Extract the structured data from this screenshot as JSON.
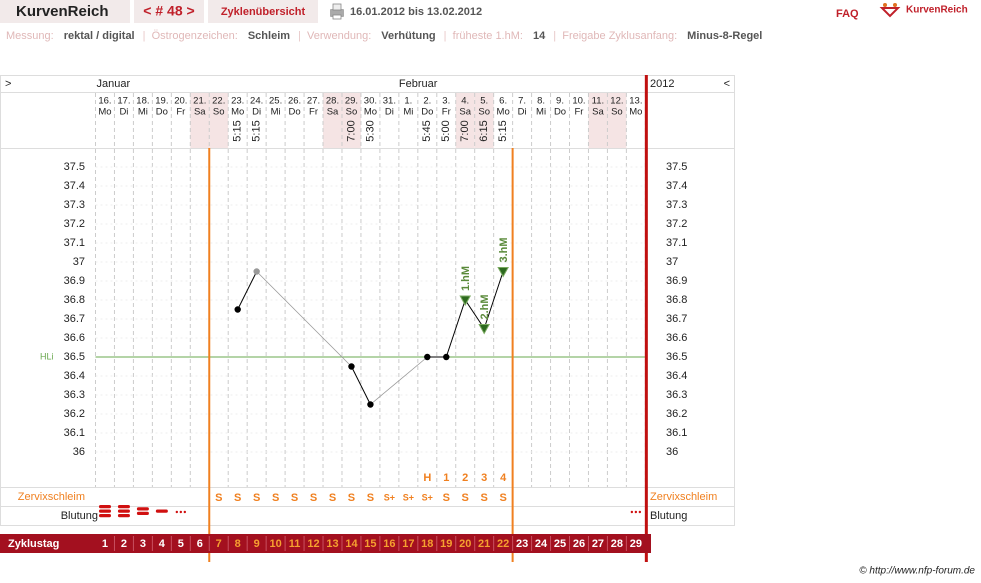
{
  "header": {
    "brand": "KurvenReich",
    "cycle_nav": "< # 48 >",
    "tab": "Zyklenübersicht",
    "date_range": "16.01.2012 bis 13.02.2012",
    "faq": "FAQ",
    "logo": "KurvenReich"
  },
  "info": [
    {
      "label": "Messung:",
      "value": "rektal / digital"
    },
    {
      "label": "Östrogenzeichen:",
      "value": "Schleim"
    },
    {
      "label": "Verwendung:",
      "value": "Verhütung"
    },
    {
      "label": "früheste 1.hM:",
      "value": "14"
    },
    {
      "label": "Freigabe Zyklusanfang:",
      "value": "Minus-8-Regel"
    }
  ],
  "footer": "© http://www.nfp-forum.de",
  "chart_data": {
    "type": "line",
    "nav_prev": ">",
    "nav_next": "<",
    "year": "2012",
    "months": [
      {
        "name": "Januar",
        "start": 1
      },
      {
        "name": "Februar",
        "start": 17
      }
    ],
    "categories": [
      "16.",
      "17.",
      "18.",
      "19.",
      "20.",
      "21.",
      "22.",
      "23.",
      "24.",
      "25.",
      "26.",
      "27.",
      "28.",
      "29.",
      "30.",
      "31.",
      "1.",
      "2.",
      "3.",
      "4.",
      "5.",
      "6.",
      "7.",
      "8.",
      "9.",
      "10.",
      "11.",
      "12.",
      "13."
    ],
    "weekdays": [
      "Mo",
      "Di",
      "Mi",
      "Do",
      "Fr",
      "Sa",
      "So",
      "Mo",
      "Di",
      "Mi",
      "Do",
      "Fr",
      "Sa",
      "So",
      "Mo",
      "Di",
      "Mi",
      "Do",
      "Fr",
      "Sa",
      "So",
      "Mo",
      "Di",
      "Mi",
      "Do",
      "Fr",
      "Sa",
      "So",
      "Mo"
    ],
    "times": [
      null,
      null,
      null,
      null,
      null,
      null,
      null,
      "5:15",
      "5:15",
      null,
      null,
      null,
      null,
      "7:00",
      "5:30",
      null,
      null,
      "5:45",
      "5:00",
      "7:00",
      "6:15",
      "5:15",
      null,
      null,
      null,
      null,
      null,
      null,
      null
    ],
    "values": [
      null,
      null,
      null,
      null,
      null,
      null,
      null,
      36.75,
      36.95,
      null,
      null,
      null,
      null,
      36.45,
      36.25,
      null,
      null,
      36.5,
      36.5,
      36.8,
      36.65,
      36.95,
      null,
      null,
      null,
      null,
      null,
      null,
      null
    ],
    "excluded": [
      9
    ],
    "color": "#000000",
    "excluded_color": "#999999",
    "ylim": [
      35.9,
      37.6
    ],
    "yticks": [
      {
        "value": 36,
        "label": "36"
      },
      36.1,
      36.2,
      36.3,
      36.4,
      36.5,
      36.6,
      36.7,
      36.8,
      36.9,
      {
        "value": 37,
        "label": "37"
      },
      37.1,
      37.2,
      37.3,
      37.4,
      37.5
    ],
    "cover_line": {
      "label": "HLi",
      "value": 36.5,
      "color": "#6aa84f"
    },
    "high_markers": [
      null,
      null,
      null,
      null,
      null,
      null,
      null,
      null,
      null,
      null,
      null,
      null,
      null,
      null,
      null,
      null,
      null,
      null,
      null,
      "1.hM",
      "2.hM",
      "3.hM",
      null,
      null,
      null,
      null,
      null,
      null,
      null
    ],
    "peak_count": [
      null,
      null,
      null,
      null,
      null,
      null,
      null,
      null,
      null,
      null,
      null,
      null,
      null,
      null,
      null,
      null,
      null,
      "H",
      1,
      2,
      3,
      4,
      null,
      null,
      null,
      null,
      null,
      null,
      null
    ],
    "mucus_label": "Zervixschleim",
    "mucus": [
      null,
      null,
      null,
      null,
      null,
      null,
      "S",
      "S",
      "S",
      "S",
      "S",
      "S",
      "S",
      "S",
      "S",
      "S+",
      "S+",
      "S+",
      "S",
      "S",
      "S",
      "S",
      null,
      null,
      null,
      null,
      null,
      null,
      null
    ],
    "bleeding_label": "Blutung",
    "cycle_label": "Zyklustag",
    "cycle_days": [
      1,
      2,
      3,
      4,
      5,
      6,
      7,
      8,
      9,
      10,
      11,
      12,
      13,
      14,
      15,
      16,
      17,
      18,
      19,
      20,
      21,
      22,
      23,
      24,
      25,
      26,
      27,
      28,
      29
    ],
    "fertile_days": [
      7,
      22
    ]
  }
}
